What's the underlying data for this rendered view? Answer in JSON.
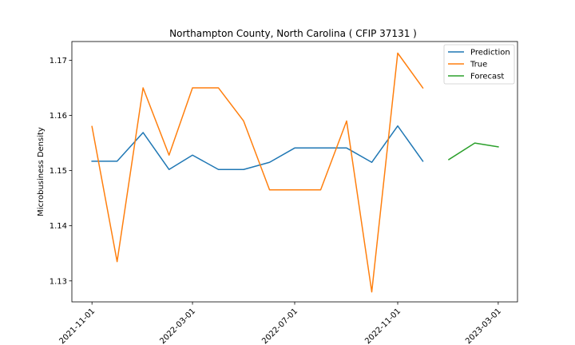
{
  "chart_data": {
    "type": "line",
    "title": "Northampton County, North Carolina ( CFIP 37131 )",
    "xlabel": "",
    "ylabel": "Microbusiness Density",
    "x_is_date": true,
    "xlim": [
      "2021-10-08",
      "2023-03-24"
    ],
    "ylim": [
      1.1262,
      1.1734
    ],
    "yticks": [
      1.13,
      1.14,
      1.15,
      1.16,
      1.17
    ],
    "ytick_labels": [
      "1.13",
      "1.14",
      "1.15",
      "1.16",
      "1.17"
    ],
    "xticks": [
      "2021-11-01",
      "2022-03-01",
      "2022-07-01",
      "2022-11-01",
      "2023-03-01"
    ],
    "xtick_labels": [
      "2021-11-01",
      "2022-03-01",
      "2022-07-01",
      "2022-11-01",
      "2023-03-01"
    ],
    "grid": false,
    "legend_position": "top-right",
    "series": [
      {
        "name": "Prediction",
        "color": "#1f77b4",
        "x": [
          "2021-11-01",
          "2021-12-01",
          "2022-01-01",
          "2022-02-01",
          "2022-03-01",
          "2022-04-01",
          "2022-05-01",
          "2022-06-01",
          "2022-07-01",
          "2022-08-01",
          "2022-09-01",
          "2022-10-01",
          "2022-11-01",
          "2022-12-01"
        ],
        "y": [
          1.1517,
          1.1517,
          1.1569,
          1.1502,
          1.1528,
          1.1502,
          1.1502,
          1.1515,
          1.1541,
          1.1541,
          1.1541,
          1.1515,
          1.1581,
          1.1517
        ]
      },
      {
        "name": "True",
        "color": "#ff7f0e",
        "x": [
          "2021-11-01",
          "2021-12-01",
          "2022-01-01",
          "2022-02-01",
          "2022-03-01",
          "2022-04-01",
          "2022-05-01",
          "2022-06-01",
          "2022-07-01",
          "2022-08-01",
          "2022-09-01",
          "2022-10-01",
          "2022-11-01",
          "2022-12-01"
        ],
        "y": [
          1.158,
          1.1335,
          1.165,
          1.1528,
          1.165,
          1.165,
          1.159,
          1.1465,
          1.1465,
          1.1465,
          1.159,
          1.128,
          1.1713,
          1.165
        ]
      },
      {
        "name": "Forecast",
        "color": "#2ca02c",
        "x": [
          "2023-01-01",
          "2023-02-01",
          "2023-03-01"
        ],
        "y": [
          1.152,
          1.155,
          1.1543
        ]
      }
    ]
  }
}
